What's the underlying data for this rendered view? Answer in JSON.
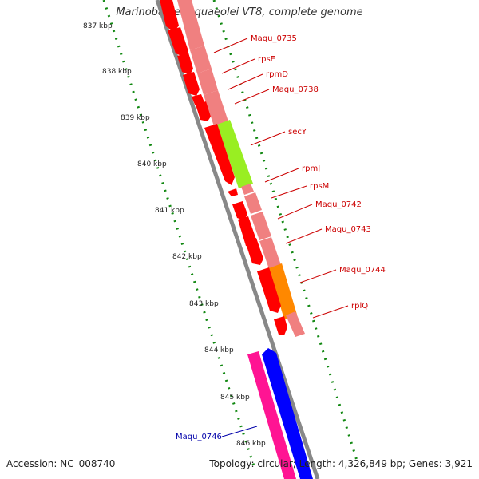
{
  "title": "Marinobacter aquaeolei VT8, complete genome",
  "accession": "Accession: NC_008740",
  "summary": "Topology: circular; Length: 4,326,849 bp; Genes: 3,921",
  "ticks": [
    {
      "label": "837 kbp"
    },
    {
      "label": "838 kbp"
    },
    {
      "label": "839 kbp"
    },
    {
      "label": "840 kbp"
    },
    {
      "label": "841 kbp"
    },
    {
      "label": "842 kbp"
    },
    {
      "label": "843 kbp"
    },
    {
      "label": "844 kbp"
    },
    {
      "label": "845 kbp"
    },
    {
      "label": "846 kbp"
    }
  ],
  "genes": [
    {
      "name": "Maqu_0735",
      "color": "#cc0000"
    },
    {
      "name": "rpsE",
      "color": "#cc0000"
    },
    {
      "name": "rpmD",
      "color": "#cc0000"
    },
    {
      "name": "Maqu_0738",
      "color": "#cc0000"
    },
    {
      "name": "secY",
      "color": "#cc0000"
    },
    {
      "name": "rpmJ",
      "color": "#cc0000"
    },
    {
      "name": "rpsM",
      "color": "#cc0000"
    },
    {
      "name": "Maqu_0742",
      "color": "#cc0000"
    },
    {
      "name": "Maqu_0743",
      "color": "#cc0000"
    },
    {
      "name": "Maqu_0744",
      "color": "#cc0000"
    },
    {
      "name": "rplQ",
      "color": "#cc0000"
    },
    {
      "name": "Maqu_0746",
      "color": "#0000aa"
    }
  ],
  "colors": {
    "cds": "#ff0000",
    "cds_light": "#f08080",
    "secY": "#99ee22",
    "maqu_0744": "#ff8800",
    "maqu_0746_pink": "#ff1493",
    "maqu_0746_blue": "#0000ff",
    "backbone": "#888888",
    "tick": "#118811"
  }
}
